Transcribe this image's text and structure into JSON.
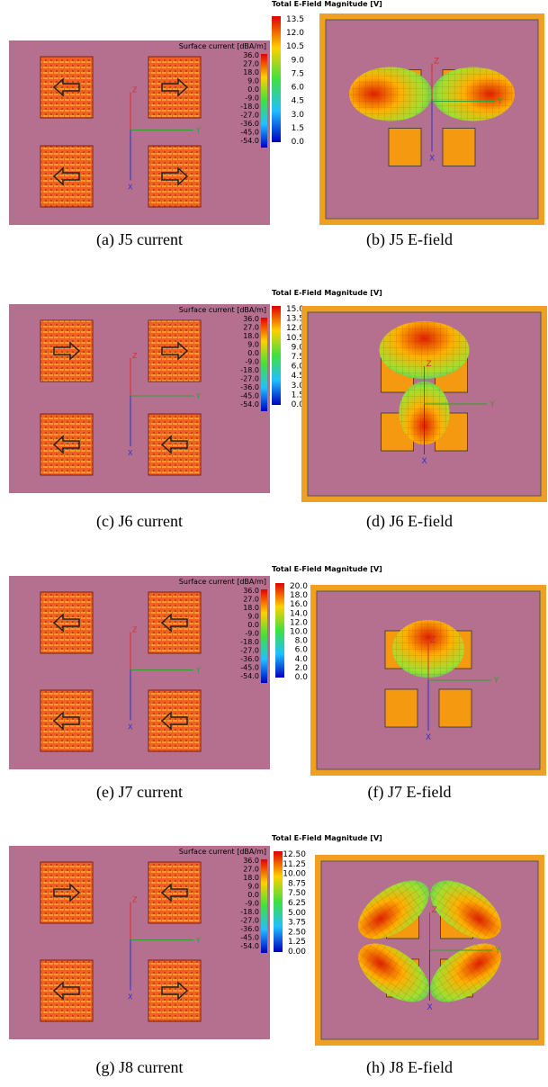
{
  "rows": [
    {
      "current": {
        "legend_title": "Surface current [dBA/m]",
        "legend_ticks": [
          "36.0",
          "27.0",
          "18.0",
          "9.0",
          "0.0",
          "-9.0",
          "-18.0",
          "-27.0",
          "-36.0",
          "-45.0",
          "-54.0"
        ],
        "axes": [
          "Z",
          "Y",
          "X"
        ],
        "caption": "(a) J5 current"
      },
      "efield": {
        "legend_title": "Total E-Field Magnitude [V]",
        "legend_ticks": [
          "13.5",
          "12.0",
          "10.5",
          "9.0",
          "7.5",
          "6.0",
          "4.5",
          "3.0",
          "1.5",
          "0.0"
        ],
        "axes": [
          "Z",
          "Y",
          "X"
        ],
        "caption": "(b) J5 E-field"
      }
    },
    {
      "current": {
        "legend_title": "Surface current [dBA/m]",
        "legend_ticks": [
          "36.0",
          "27.0",
          "18.0",
          "9.0",
          "0.0",
          "-9.0",
          "-18.0",
          "-27.0",
          "-36.0",
          "-45.0",
          "-54.0"
        ],
        "axes": [
          "Z",
          "Y",
          "X"
        ],
        "caption": "(c) J6 current"
      },
      "efield": {
        "legend_title": "Total E-Field Magnitude [V]",
        "legend_ticks": [
          "15.0",
          "13.5",
          "12.0",
          "10.5",
          "9.0",
          "7.5",
          "6.0",
          "4.5",
          "3.0",
          "1.5",
          "0.0"
        ],
        "axes": [
          "Z",
          "Y",
          "X"
        ],
        "caption": "(d) J6 E-field"
      }
    },
    {
      "current": {
        "legend_title": "Surface current [dBA/m]",
        "legend_ticks": [
          "36.0",
          "27.0",
          "18.0",
          "9.0",
          "0.0",
          "-9.0",
          "-18.0",
          "-27.0",
          "-36.0",
          "-45.0",
          "-54.0"
        ],
        "axes": [
          "Z",
          "Y",
          "X"
        ],
        "caption": "(e) J7 current"
      },
      "efield": {
        "legend_title": "Total E-Field Magnitude [V]",
        "legend_ticks": [
          "20.0",
          "18.0",
          "16.0",
          "14.0",
          "12.0",
          "10.0",
          "8.0",
          "6.0",
          "4.0",
          "2.0",
          "0.0"
        ],
        "axes": [
          "Z",
          "Y",
          "X"
        ],
        "caption": "(f) J7 E-field"
      }
    },
    {
      "current": {
        "legend_title": "Surface current [dBA/m]",
        "legend_ticks": [
          "36.0",
          "27.0",
          "18.0",
          "9.0",
          "0.0",
          "-9.0",
          "-18.0",
          "-27.0",
          "-36.0",
          "-45.0",
          "-54.0"
        ],
        "axes": [
          "Z",
          "Y",
          "X"
        ],
        "caption": "(g) J8 current"
      },
      "efield": {
        "legend_title": "Total E-Field Magnitude [V]",
        "legend_ticks": [
          "12.50",
          "11.25",
          "10.00",
          "8.75",
          "7.50",
          "6.25",
          "5.00",
          "3.75",
          "2.50",
          "1.25",
          "0.00"
        ],
        "axes": [
          "Z",
          "Y",
          "X"
        ],
        "caption": "(h) J8 E-field"
      }
    }
  ]
}
